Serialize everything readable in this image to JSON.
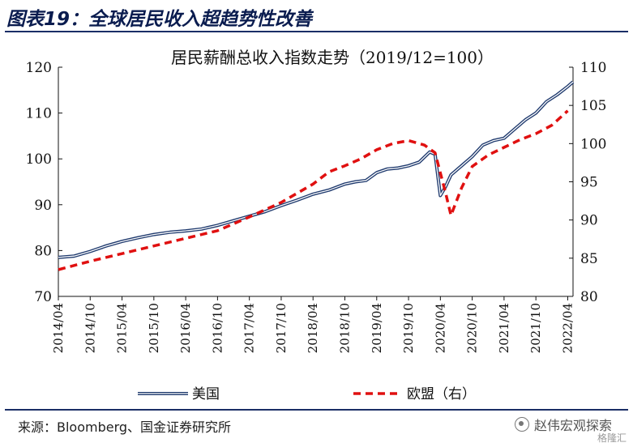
{
  "header": {
    "title": "图表19：全球居民收入超趋势性改善"
  },
  "footer": {
    "source": "来源：Bloomberg、国金证券研究所",
    "watermark": "赵伟宏观探索",
    "watermark_sub": "格隆汇"
  },
  "colors": {
    "us": "#1f3a6e",
    "eu": "#e01010",
    "rule": "#1a2e66"
  },
  "chart_data": {
    "type": "line",
    "title": "居民薪酬总收入指数走势（2019/12=100）",
    "x_tick_labels": [
      "2014/04",
      "2014/10",
      "2015/04",
      "2015/10",
      "2016/04",
      "2016/10",
      "2017/04",
      "2017/10",
      "2018/04",
      "2018/10",
      "2019/04",
      "2019/10",
      "2020/04",
      "2020/10",
      "2021/04",
      "2021/10",
      "2022/04"
    ],
    "x_start": "2014/04",
    "x_end": "2022/05",
    "y_left": {
      "min": 70,
      "max": 120,
      "ticks": [
        70,
        80,
        90,
        100,
        110,
        120
      ]
    },
    "y_right": {
      "min": 80,
      "max": 110,
      "ticks": [
        80,
        85,
        90,
        95,
        100,
        105,
        110
      ]
    },
    "legend_position": "bottom",
    "grid": false,
    "series": [
      {
        "name": "美国",
        "axis": "left",
        "style": "double-line",
        "points": [
          [
            "2014/04",
            78.5
          ],
          [
            "2014/07",
            78.8
          ],
          [
            "2014/10",
            79.8
          ],
          [
            "2015/01",
            81.0
          ],
          [
            "2015/04",
            82.0
          ],
          [
            "2015/07",
            82.8
          ],
          [
            "2015/10",
            83.5
          ],
          [
            "2016/01",
            84.0
          ],
          [
            "2016/04",
            84.3
          ],
          [
            "2016/07",
            84.7
          ],
          [
            "2016/10",
            85.5
          ],
          [
            "2017/01",
            86.5
          ],
          [
            "2017/04",
            87.5
          ],
          [
            "2017/07",
            88.5
          ],
          [
            "2017/10",
            89.8
          ],
          [
            "2018/01",
            91.0
          ],
          [
            "2018/04",
            92.3
          ],
          [
            "2018/07",
            93.2
          ],
          [
            "2018/10",
            94.5
          ],
          [
            "2018/12",
            95.0
          ],
          [
            "2019/02",
            95.3
          ],
          [
            "2019/04",
            97.0
          ],
          [
            "2019/06",
            97.8
          ],
          [
            "2019/08",
            98.0
          ],
          [
            "2019/10",
            98.5
          ],
          [
            "2019/12",
            99.3
          ],
          [
            "2020/02",
            101.5
          ],
          [
            "2020/03",
            101.0
          ],
          [
            "2020/04",
            92.0
          ],
          [
            "2020/05",
            94.0
          ],
          [
            "2020/06",
            96.5
          ],
          [
            "2020/08",
            98.5
          ],
          [
            "2020/10",
            100.5
          ],
          [
            "2020/12",
            103.0
          ],
          [
            "2021/02",
            104.0
          ],
          [
            "2021/04",
            104.5
          ],
          [
            "2021/06",
            106.5
          ],
          [
            "2021/08",
            108.5
          ],
          [
            "2021/10",
            110.0
          ],
          [
            "2021/12",
            112.5
          ],
          [
            "2022/02",
            114.0
          ],
          [
            "2022/04",
            115.8
          ],
          [
            "2022/05",
            116.8
          ]
        ]
      },
      {
        "name": "欧盟（右）",
        "axis": "right",
        "style": "dashed",
        "points": [
          [
            "2014/04",
            83.5
          ],
          [
            "2014/10",
            84.6
          ],
          [
            "2015/04",
            85.6
          ],
          [
            "2015/10",
            86.6
          ],
          [
            "2016/04",
            87.6
          ],
          [
            "2016/10",
            88.6
          ],
          [
            "2017/04",
            90.4
          ],
          [
            "2017/10",
            92.3
          ],
          [
            "2018/04",
            94.7
          ],
          [
            "2018/07",
            96.3
          ],
          [
            "2018/10",
            97.1
          ],
          [
            "2019/01",
            98.0
          ],
          [
            "2019/04",
            99.2
          ],
          [
            "2019/07",
            100.0
          ],
          [
            "2019/10",
            100.4
          ],
          [
            "2020/01",
            99.8
          ],
          [
            "2020/03",
            98.8
          ],
          [
            "2020/05",
            93.5
          ],
          [
            "2020/06",
            90.6
          ],
          [
            "2020/08",
            94.2
          ],
          [
            "2020/10",
            97.0
          ],
          [
            "2021/01",
            98.5
          ],
          [
            "2021/04",
            99.5
          ],
          [
            "2021/07",
            100.5
          ],
          [
            "2021/10",
            101.3
          ],
          [
            "2022/01",
            102.4
          ],
          [
            "2022/04",
            104.3
          ]
        ]
      }
    ]
  }
}
